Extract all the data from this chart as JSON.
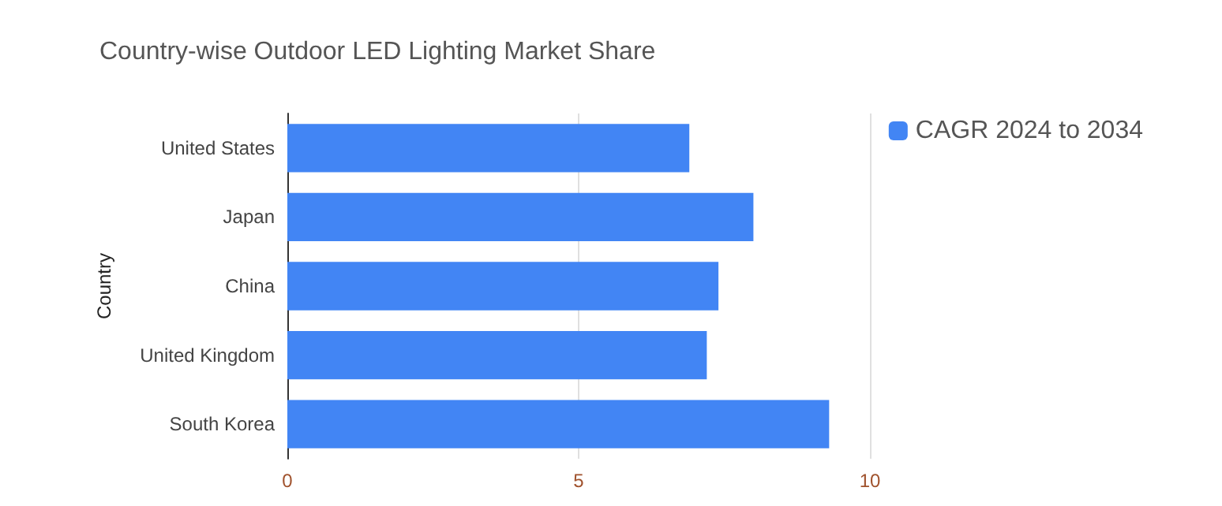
{
  "chart_data": {
    "type": "bar",
    "orientation": "horizontal",
    "title": "Country-wise Outdoor LED Lighting Market Share",
    "ylabel": "Country",
    "categories": [
      "United States",
      "Japan",
      "China",
      "United Kingdom",
      "South Korea"
    ],
    "series": [
      {
        "name": "CAGR 2024 to 2034",
        "color": "#4285f4",
        "values": [
          6.9,
          8.0,
          7.4,
          7.2,
          9.3
        ]
      }
    ],
    "xlim": [
      0,
      10
    ],
    "xticks": [
      0,
      5,
      10
    ],
    "grid": "x",
    "legend": "top right"
  }
}
